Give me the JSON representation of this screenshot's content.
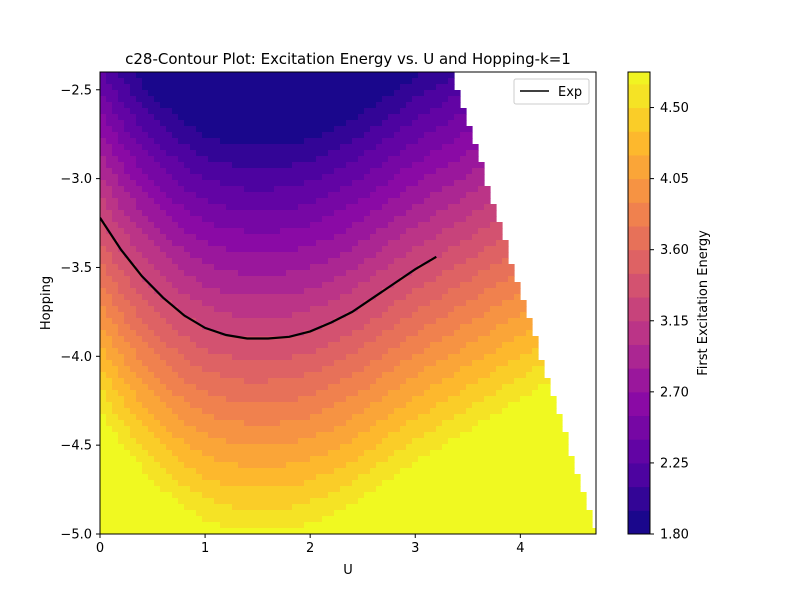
{
  "chart_data": {
    "type": "contour",
    "title": "c28-Contour Plot: Excitation Energy vs. U and Hopping-k=1",
    "xlabel": "U",
    "ylabel": "Hopping",
    "xlim": [
      0,
      4.72
    ],
    "ylim": [
      -5.0,
      -2.4
    ],
    "xticks": [
      0,
      1,
      2,
      3,
      4
    ],
    "xtick_labels": [
      "0",
      "1",
      "2",
      "3",
      "4"
    ],
    "yticks": [
      -2.5,
      -3.0,
      -3.5,
      -4.0,
      -4.5,
      -5.0
    ],
    "ytick_labels": [
      "−2.5",
      "−3.0",
      "−3.5",
      "−4.0",
      "−4.5",
      "−5.0"
    ],
    "domain_boundary": [
      [
        3.35,
        -2.4
      ],
      [
        4.72,
        -5.0
      ]
    ],
    "field_samples": [
      {
        "u": 1.1,
        "hopping": -2.5,
        "energy": 1.9
      },
      {
        "u": 1.6,
        "hopping": -3.9,
        "energy": 3.3
      },
      {
        "u": 0.0,
        "hopping": -5.0,
        "energy": 4.7
      },
      {
        "u": 4.6,
        "hopping": -5.0,
        "energy": 4.4
      }
    ],
    "colorbar": {
      "label": "First Excitation Energy",
      "colormap": "plasma",
      "range": [
        1.8,
        4.725
      ],
      "levels": [
        1.8,
        1.95,
        2.1,
        2.25,
        2.4,
        2.55,
        2.7,
        2.85,
        3.0,
        3.15,
        3.3,
        3.45,
        3.6,
        3.75,
        3.9,
        4.05,
        4.2,
        4.35,
        4.5,
        4.65,
        4.8
      ],
      "ticks": [
        1.8,
        2.25,
        2.7,
        3.15,
        3.6,
        4.05,
        4.5
      ],
      "tick_labels": [
        "1.80",
        "2.25",
        "2.70",
        "3.15",
        "3.60",
        "4.05",
        "4.50"
      ]
    },
    "series": [
      {
        "name": "Exp",
        "color": "#000000",
        "type": "line",
        "x": [
          0.0,
          0.2,
          0.4,
          0.6,
          0.8,
          1.0,
          1.2,
          1.4,
          1.6,
          1.8,
          2.0,
          2.2,
          2.4,
          2.6,
          2.8,
          3.0,
          3.2
        ],
        "y": [
          -3.22,
          -3.4,
          -3.55,
          -3.67,
          -3.77,
          -3.84,
          -3.88,
          -3.9,
          -3.9,
          -3.89,
          -3.86,
          -3.81,
          -3.75,
          -3.67,
          -3.59,
          -3.51,
          -3.44
        ]
      }
    ],
    "legend": {
      "position": "top-right",
      "entries": [
        "Exp"
      ]
    },
    "grid": false
  }
}
